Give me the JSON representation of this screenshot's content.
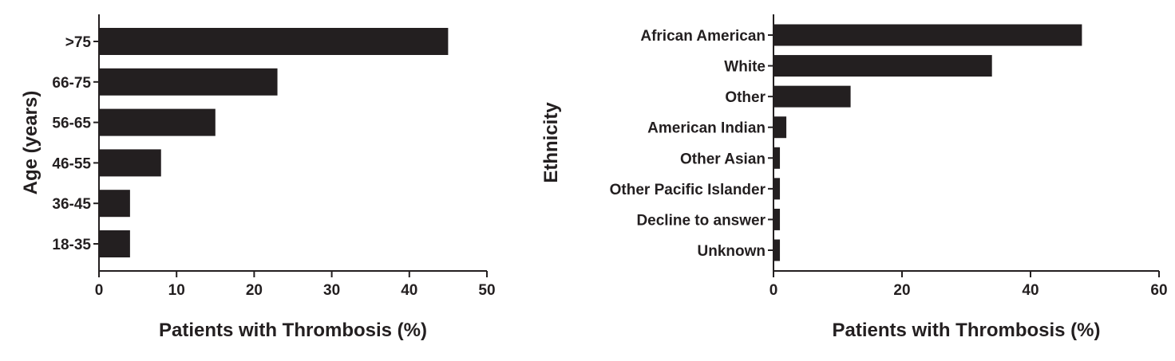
{
  "chart_data": [
    {
      "type": "bar",
      "orientation": "horizontal",
      "categories": [
        ">75",
        "66-75",
        "56-65",
        "46-55",
        "36-45",
        "18-35"
      ],
      "values": [
        45,
        23,
        15,
        8,
        4,
        4
      ],
      "xlabel": "Patients with Thrombosis (%)",
      "ylabel": "Age (years)",
      "xlim": [
        0,
        50
      ],
      "xticks": [
        0,
        10,
        20,
        30,
        40,
        50
      ],
      "grid": false,
      "bar_color": "#231f20"
    },
    {
      "type": "bar",
      "orientation": "horizontal",
      "categories": [
        "African American",
        "White",
        "Other",
        "American Indian",
        "Other Asian",
        "Other Pacific Islander",
        "Decline to answer",
        "Unknown"
      ],
      "values": [
        48,
        34,
        12,
        2,
        1,
        1,
        1,
        1
      ],
      "xlabel": "Patients with Thrombosis (%)",
      "ylabel": "Ethnicity",
      "xlim": [
        0,
        60
      ],
      "xticks": [
        0,
        20,
        40,
        60
      ],
      "grid": false,
      "bar_color": "#231f20"
    }
  ]
}
